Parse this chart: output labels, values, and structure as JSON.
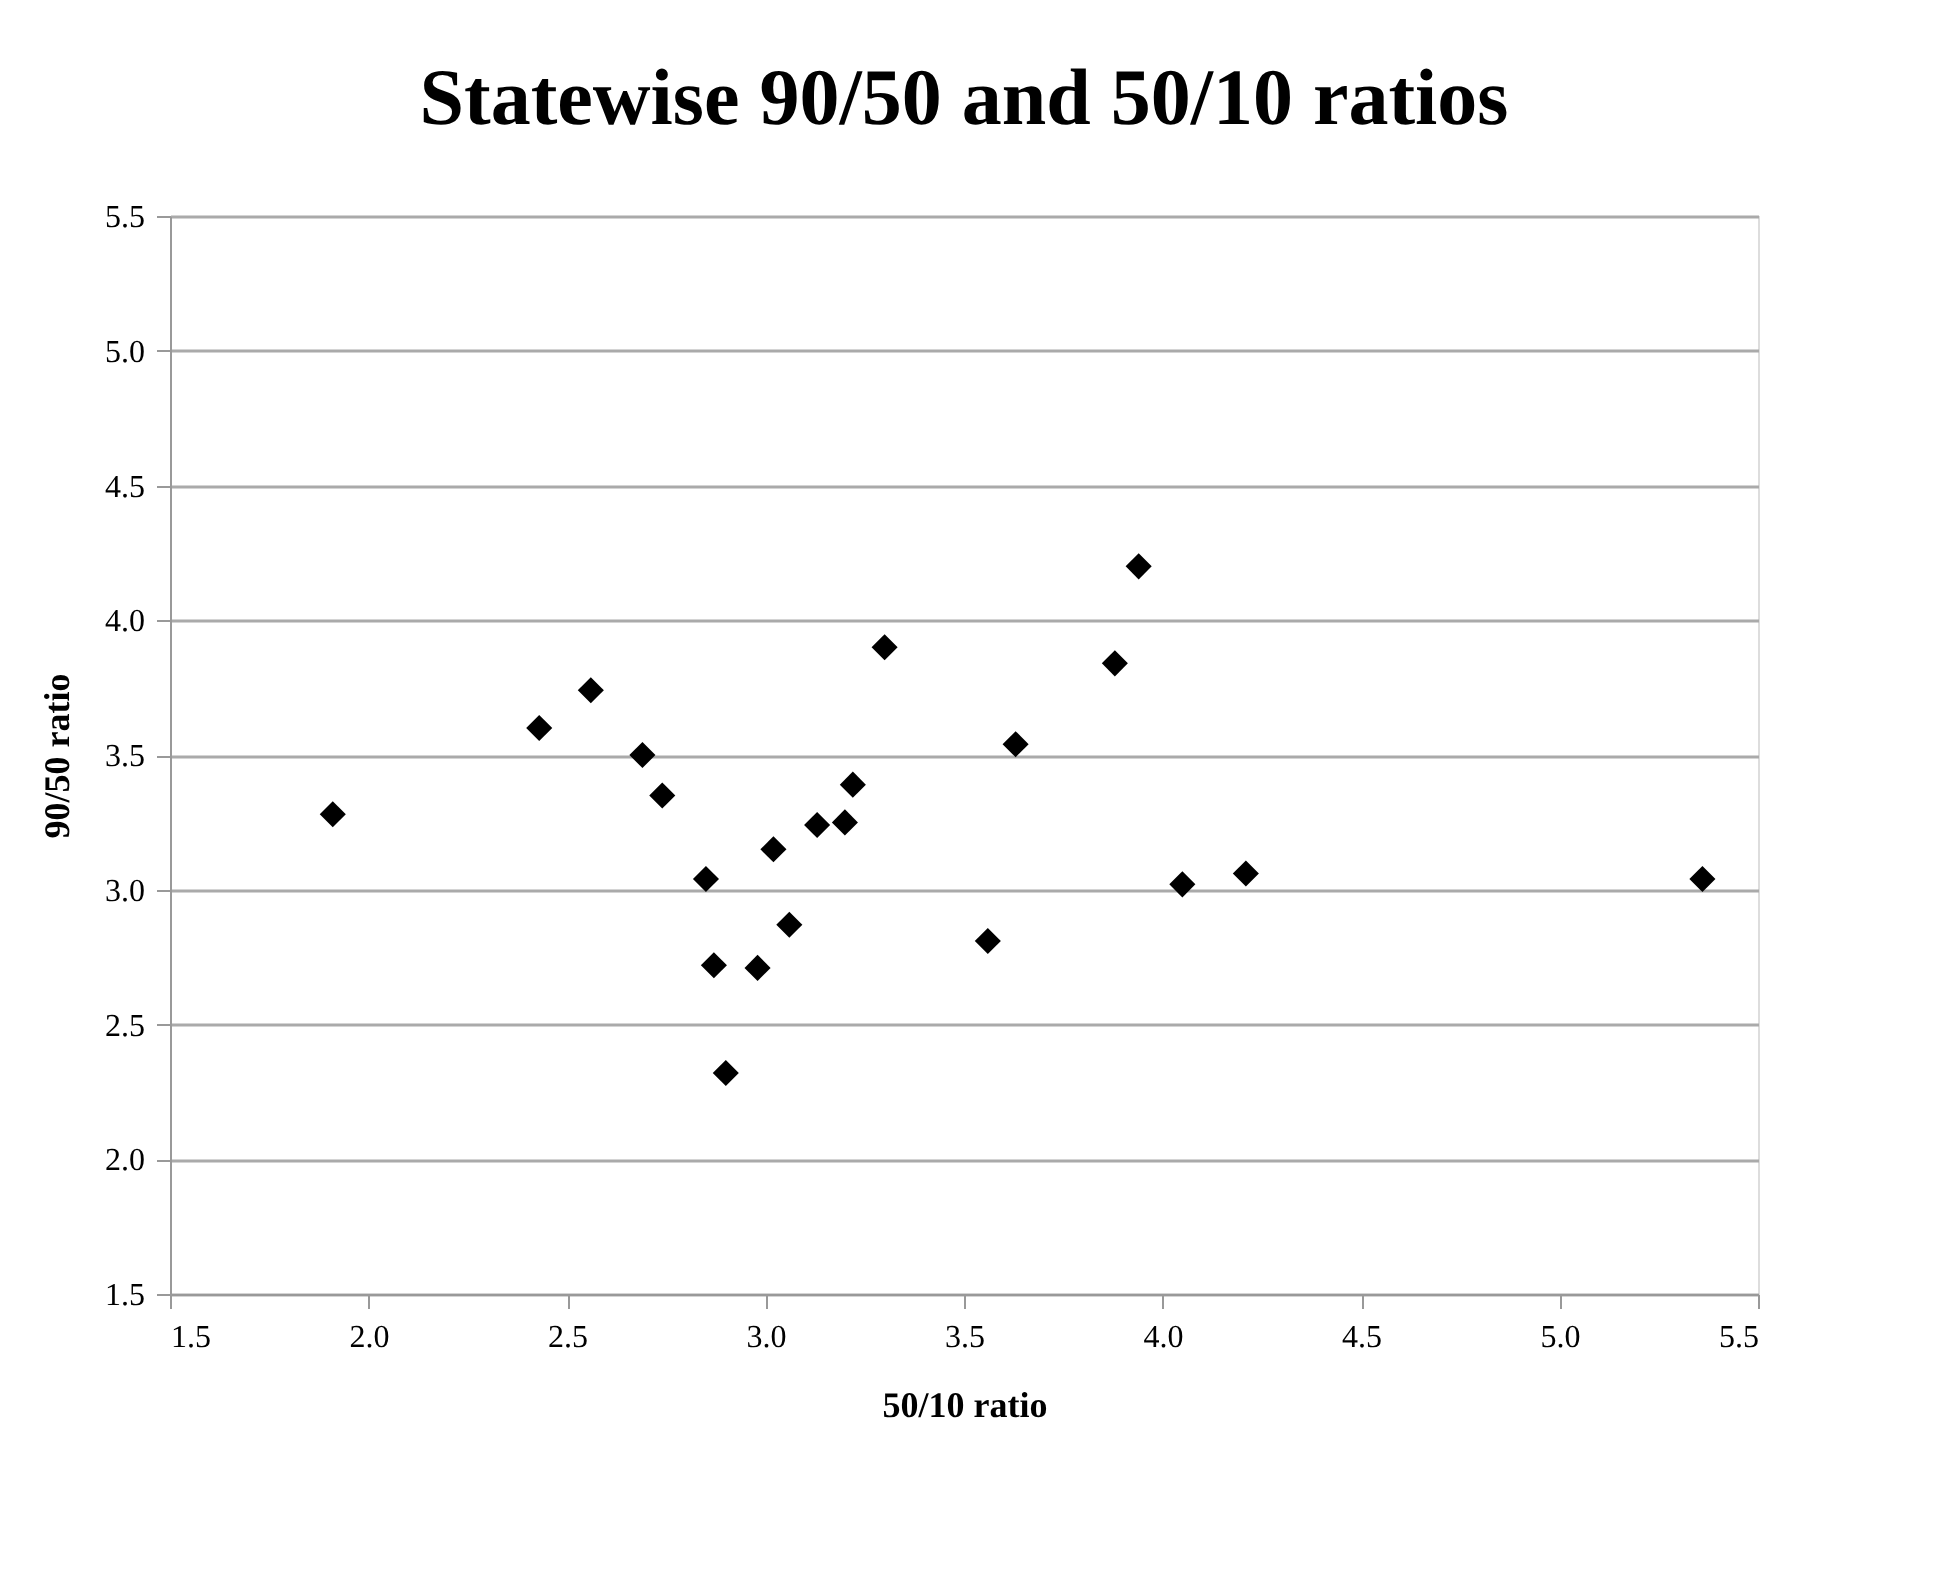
{
  "chart_data": {
    "type": "scatter",
    "title": "Statewise 90/50 and 50/10 ratios",
    "xlabel": "50/10 ratio",
    "ylabel": "90/50 ratio",
    "x": [
      1.91,
      2.43,
      2.56,
      2.69,
      2.74,
      2.85,
      2.87,
      2.9,
      2.98,
      3.02,
      3.06,
      3.13,
      3.2,
      3.22,
      3.3,
      3.56,
      3.63,
      3.88,
      3.94,
      4.05,
      4.21,
      5.36
    ],
    "series": [
      {
        "color": "#000000",
        "values": [
          3.28,
          3.6,
          3.74,
          3.5,
          3.35,
          3.04,
          2.72,
          2.32,
          2.71,
          3.15,
          2.87,
          3.24,
          3.25,
          3.39,
          3.9,
          2.81,
          3.54,
          3.84,
          4.2,
          3.02,
          3.06,
          3.04
        ]
      }
    ],
    "xlim": [
      1.5,
      5.5
    ],
    "ylim": [
      1.5,
      5.5
    ],
    "xticks": [
      {
        "value": 1.5,
        "label": "1.5"
      },
      {
        "value": 2,
        "label": "2.0"
      },
      {
        "value": 2.5,
        "label": "2.5"
      },
      {
        "value": 3,
        "label": "3.0"
      },
      {
        "value": 3.5,
        "label": "3.5"
      },
      {
        "value": 4,
        "label": "4.0"
      },
      {
        "value": 4.5,
        "label": "4.5"
      },
      {
        "value": 5,
        "label": "5.0"
      },
      {
        "value": 5.5,
        "label": "5.5"
      }
    ],
    "yticks": [
      {
        "value": 1.5,
        "label": "1.5"
      },
      {
        "value": 2,
        "label": "2.0"
      },
      {
        "value": 2.5,
        "label": "2.5"
      },
      {
        "value": 3,
        "label": "3.0"
      },
      {
        "value": 3.5,
        "label": "3.5"
      },
      {
        "value": 4,
        "label": "4.0"
      },
      {
        "value": 4.5,
        "label": "4.5"
      },
      {
        "value": 5,
        "label": "5.0"
      },
      {
        "value": 5.5,
        "label": "5.5"
      }
    ],
    "grid": "y",
    "marker": "diamond"
  }
}
